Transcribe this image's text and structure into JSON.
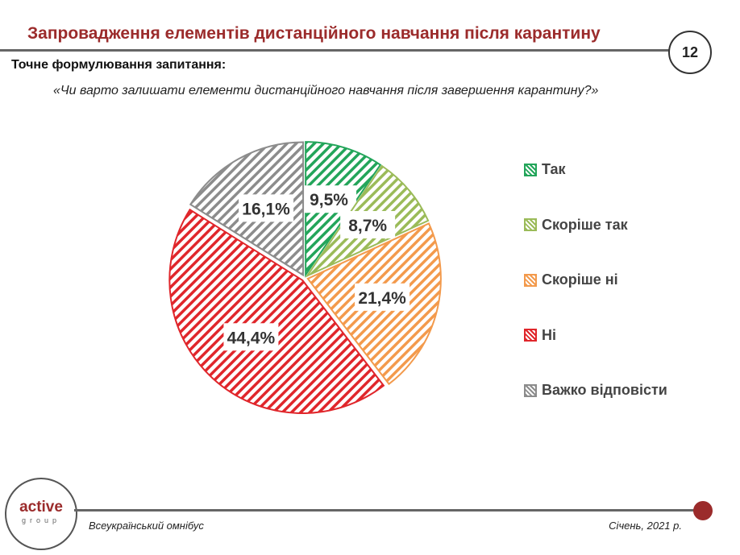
{
  "header": {
    "title": "Запровадження елементів дистанційного навчання після карантину",
    "page_number": "12"
  },
  "question": {
    "label": "Точне формулювання запитання:",
    "text": "«Чи варто залишати елементи дистанційного навчання після завершення карантину?»"
  },
  "chart_data": {
    "type": "pie",
    "title": "",
    "start": "top",
    "direction": "clockwise",
    "pattern": "diagonal-hatch",
    "legend_position": "right",
    "slices": [
      {
        "name": "Так",
        "value": 9.5,
        "label": "9,5%",
        "color": "#23a55a"
      },
      {
        "name": "Скоріше так",
        "value": 8.7,
        "label": "8,7%",
        "color": "#9bbb59"
      },
      {
        "name": "Скоріше ні",
        "value": 21.4,
        "label": "21,4%",
        "color": "#f39a4c"
      },
      {
        "name": "Ні",
        "value": 44.4,
        "label": "44,4%",
        "color": "#e0262b"
      },
      {
        "name": "Важко відповісти",
        "value": 16.1,
        "label": "16,1%",
        "color": "#8c8c8c"
      }
    ]
  },
  "footer": {
    "logo_text": "active",
    "logo_sub": "group",
    "left": "Всеукраїнський омнібус",
    "right": "Січень, 2021 р."
  }
}
